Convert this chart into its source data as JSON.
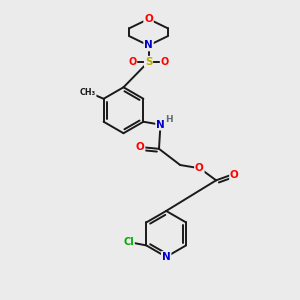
{
  "background_color": "#ebebeb",
  "bond_color": "#1a1a1a",
  "atom_colors": {
    "O": "#ff0000",
    "N": "#0000cc",
    "S": "#bbaa00",
    "Cl": "#00aa00",
    "C": "#1a1a1a",
    "H": "#607070"
  }
}
